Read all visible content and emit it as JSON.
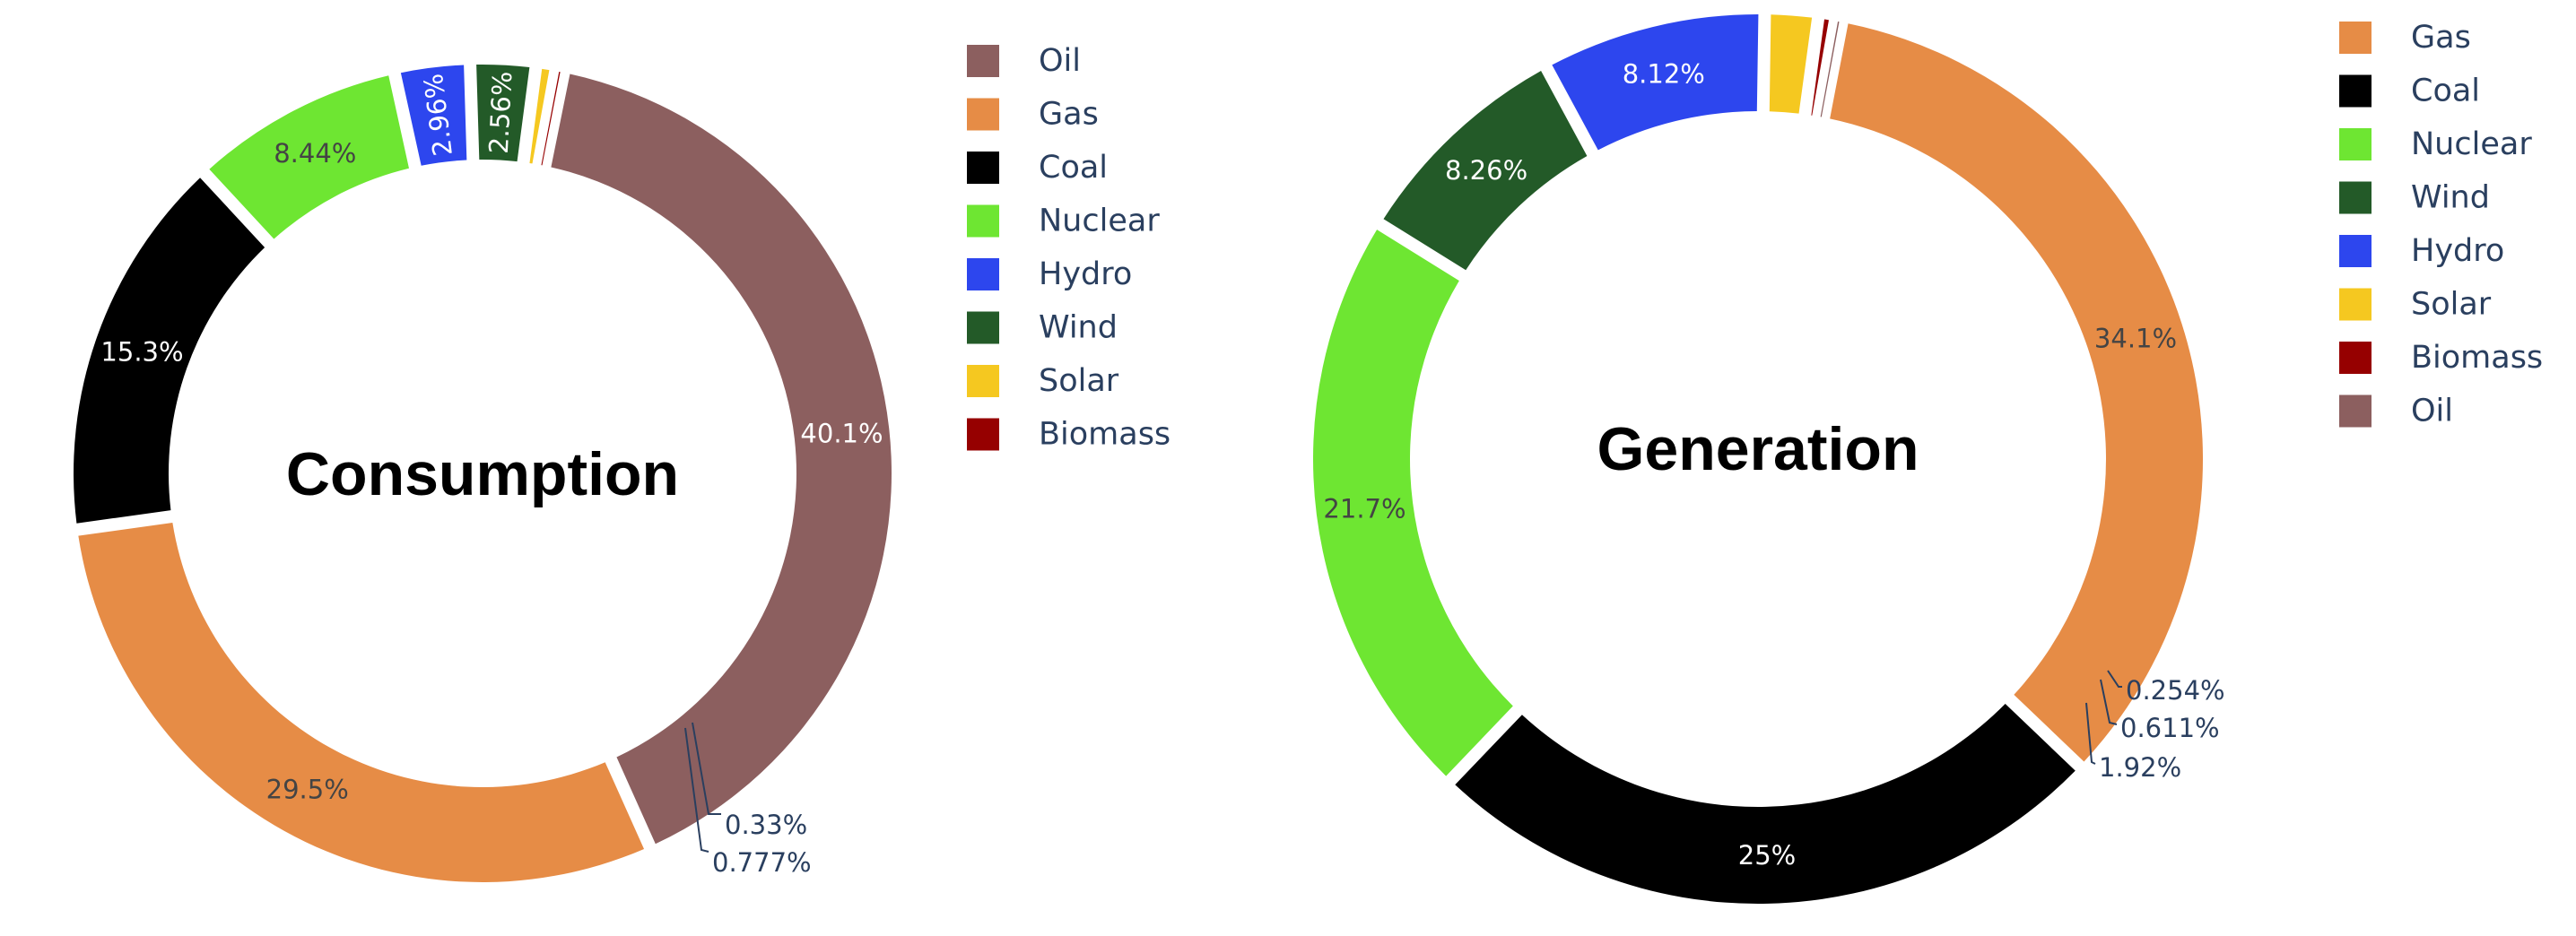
{
  "colors": {
    "Oil": "#8c5f5f",
    "Gas": "#e68c46",
    "Coal": "#000000",
    "Nuclear": "#6ee632",
    "Hydro": "#2d46ee",
    "Wind": "#235a28",
    "Solar": "#f5c820",
    "Biomass": "#960000"
  },
  "chart_data": [
    {
      "type": "pie",
      "hole": true,
      "title": "Consumption",
      "labels": [
        "Oil",
        "Gas",
        "Coal",
        "Nuclear",
        "Hydro",
        "Wind",
        "Solar",
        "Biomass"
      ],
      "values": [
        40.1,
        29.5,
        15.3,
        8.44,
        2.96,
        2.56,
        0.777,
        0.33
      ],
      "text_labels": [
        "40.1%",
        "29.5%",
        "15.3%",
        "8.44%",
        "2.96%",
        "2.56%",
        "0.777%",
        "0.33%"
      ],
      "legend": [
        "Oil",
        "Gas",
        "Coal",
        "Nuclear",
        "Hydro",
        "Wind",
        "Solar",
        "Biomass"
      ],
      "legend_position": "right"
    },
    {
      "type": "pie",
      "hole": true,
      "title": "Generation",
      "labels": [
        "Gas",
        "Coal",
        "Nuclear",
        "Wind",
        "Hydro",
        "Solar",
        "Biomass",
        "Oil"
      ],
      "values": [
        34.1,
        25,
        21.7,
        8.26,
        8.12,
        1.92,
        0.611,
        0.254
      ],
      "text_labels": [
        "34.1%",
        "25%",
        "21.7%",
        "8.26%",
        "8.12%",
        "1.92%",
        "0.611%",
        "0.254%"
      ],
      "legend": [
        "Gas",
        "Coal",
        "Nuclear",
        "Wind",
        "Hydro",
        "Solar",
        "Biomass",
        "Oil"
      ],
      "legend_position": "right"
    }
  ]
}
